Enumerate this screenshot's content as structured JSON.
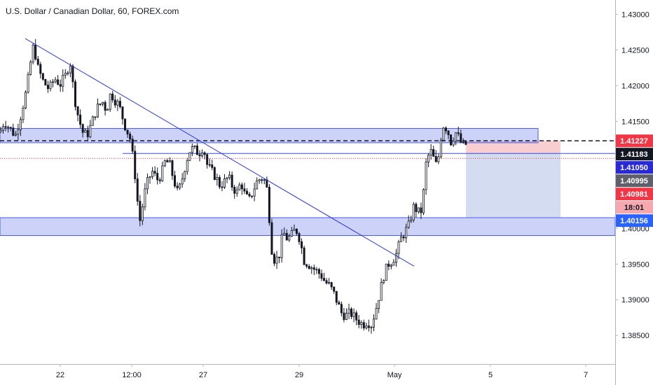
{
  "chart_data": {
    "type": "candlestick",
    "title": "U.S. Dollar / Canadian Dollar, 60, FOREX.com",
    "ylim": [
      1.381,
      1.432
    ],
    "y_axis_side": "right",
    "grid": false,
    "y_ticks": [
      {
        "value": 1.43,
        "label": "1.43000"
      },
      {
        "value": 1.425,
        "label": "1.42500"
      },
      {
        "value": 1.42,
        "label": "1.42000"
      },
      {
        "value": 1.415,
        "label": "1.41500"
      },
      {
        "value": 1.41,
        "label": "1.41000"
      },
      {
        "value": 1.405,
        "label": "1.40500"
      },
      {
        "value": 1.4,
        "label": "1.40000"
      },
      {
        "value": 1.395,
        "label": "1.39500"
      },
      {
        "value": 1.39,
        "label": "1.39000"
      },
      {
        "value": 1.385,
        "label": "1.38500"
      }
    ],
    "x_ticks": [
      {
        "t": 86,
        "label": "22"
      },
      {
        "t": 188,
        "label": "12:00"
      },
      {
        "t": 290,
        "label": "27"
      },
      {
        "t": 427,
        "label": "29"
      },
      {
        "t": 563,
        "label": "May"
      },
      {
        "t": 700,
        "label": "5"
      },
      {
        "t": 836,
        "label": "7"
      }
    ],
    "x_range": [
      0,
      878
    ],
    "price_path": [
      [
        0,
        1.4135
      ],
      [
        6,
        1.415
      ],
      [
        14,
        1.414
      ],
      [
        22,
        1.413
      ],
      [
        30,
        1.416
      ],
      [
        38,
        1.4195
      ],
      [
        44,
        1.4235
      ],
      [
        48,
        1.4258
      ],
      [
        54,
        1.4225
      ],
      [
        62,
        1.4205
      ],
      [
        70,
        1.4195
      ],
      [
        78,
        1.421
      ],
      [
        86,
        1.4202
      ],
      [
        94,
        1.4215
      ],
      [
        100,
        1.4235
      ],
      [
        106,
        1.4185
      ],
      [
        112,
        1.4155
      ],
      [
        118,
        1.4135
      ],
      [
        124,
        1.413
      ],
      [
        130,
        1.4145
      ],
      [
        138,
        1.4168
      ],
      [
        146,
        1.4178
      ],
      [
        152,
        1.4165
      ],
      [
        158,
        1.419
      ],
      [
        164,
        1.418
      ],
      [
        170,
        1.4172
      ],
      [
        178,
        1.4145
      ],
      [
        186,
        1.4125
      ],
      [
        192,
        1.4082
      ],
      [
        196,
        1.404
      ],
      [
        200,
        1.401
      ],
      [
        206,
        1.4048
      ],
      [
        212,
        1.407
      ],
      [
        218,
        1.408
      ],
      [
        224,
        1.4068
      ],
      [
        230,
        1.4075
      ],
      [
        236,
        1.4095
      ],
      [
        242,
        1.409
      ],
      [
        248,
        1.4068
      ],
      [
        254,
        1.4048
      ],
      [
        260,
        1.407
      ],
      [
        266,
        1.4095
      ],
      [
        272,
        1.4112
      ],
      [
        278,
        1.411
      ],
      [
        284,
        1.4105
      ],
      [
        290,
        1.4115
      ],
      [
        296,
        1.4088
      ],
      [
        302,
        1.408
      ],
      [
        308,
        1.4072
      ],
      [
        314,
        1.406
      ],
      [
        320,
        1.4065
      ],
      [
        326,
        1.4072
      ],
      [
        332,
        1.4058
      ],
      [
        338,
        1.405
      ],
      [
        344,
        1.4065
      ],
      [
        350,
        1.4045
      ],
      [
        356,
        1.404
      ],
      [
        362,
        1.4055
      ],
      [
        368,
        1.4068
      ],
      [
        374,
        1.407
      ],
      [
        380,
        1.4065
      ],
      [
        384,
        1.402
      ],
      [
        388,
        1.397
      ],
      [
        392,
        1.3955
      ],
      [
        398,
        1.396
      ],
      [
        404,
        1.3995
      ],
      [
        410,
        1.3985
      ],
      [
        416,
        1.399
      ],
      [
        422,
        1.4
      ],
      [
        428,
        1.3985
      ],
      [
        434,
        1.3955
      ],
      [
        440,
        1.395
      ],
      [
        446,
        1.3945
      ],
      [
        452,
        1.394
      ],
      [
        458,
        1.3935
      ],
      [
        464,
        1.3925
      ],
      [
        470,
        1.392
      ],
      [
        476,
        1.391
      ],
      [
        482,
        1.3895
      ],
      [
        488,
        1.388
      ],
      [
        494,
        1.3878
      ],
      [
        500,
        1.3882
      ],
      [
        506,
        1.3875
      ],
      [
        512,
        1.387
      ],
      [
        518,
        1.3865
      ],
      [
        524,
        1.387
      ],
      [
        530,
        1.3865
      ],
      [
        536,
        1.3885
      ],
      [
        542,
        1.391
      ],
      [
        548,
        1.3935
      ],
      [
        554,
        1.395
      ],
      [
        560,
        1.3955
      ],
      [
        566,
        1.3965
      ],
      [
        572,
        1.3985
      ],
      [
        578,
        1.3995
      ],
      [
        584,
        1.4005
      ],
      [
        590,
        1.403
      ],
      [
        596,
        1.4025
      ],
      [
        600,
        1.4018
      ],
      [
        604,
        1.4045
      ],
      [
        608,
        1.409
      ],
      [
        614,
        1.411
      ],
      [
        620,
        1.4095
      ],
      [
        624,
        1.4085
      ],
      [
        628,
        1.412
      ],
      [
        632,
        1.4145
      ],
      [
        638,
        1.414
      ],
      [
        644,
        1.412
      ],
      [
        650,
        1.4135
      ],
      [
        656,
        1.4125
      ],
      [
        660,
        1.4115
      ],
      [
        665,
        1.4118
      ]
    ],
    "annotations": {
      "trendline": {
        "from": [
          36,
          1.4266
        ],
        "to": [
          591,
          1.3947
        ],
        "color": "#2f3bd6"
      },
      "zones": [
        {
          "name": "resistance-zone",
          "t_start": 0,
          "t_end": 768,
          "y_low": 1.412,
          "y_high": 1.414,
          "color": "#8f9bf0"
        },
        {
          "name": "support-zone",
          "t_start": 0,
          "t_end": 878,
          "y_low": 1.399,
          "y_high": 1.4015,
          "color": "#8f9bf0"
        }
      ],
      "dashed_level": {
        "value": 1.41227,
        "t_start": 0,
        "t_end": 878
      },
      "blue_level": {
        "value": 1.4105,
        "t_start": 175,
        "t_end": 878
      },
      "red_level": {
        "value": 1.40981,
        "t_start": 0,
        "t_end": 878
      },
      "short_position": {
        "t_start": 665,
        "t_end": 800,
        "entry": 1.4105,
        "stop": 1.41227,
        "target": 1.40156,
        "stop_color": "#f7c5c8",
        "target_color": "#c9d3ee"
      }
    },
    "price_labels": [
      {
        "name": "label-dashed-level",
        "text": "1.41227",
        "value": 1.41227,
        "bg": "#f23645",
        "color": "#ffffff"
      },
      {
        "name": "label-last-price",
        "text": "1.41183",
        "value": 1.41183,
        "bg": "#131722",
        "color": "#ffffff"
      },
      {
        "name": "label-blue-level",
        "text": "1.41050",
        "value": 1.4105,
        "bg": "#2929d6",
        "color": "#ffffff"
      },
      {
        "name": "label-level-2",
        "text": "1.40995",
        "value": 1.40995,
        "bg": "#5d606b",
        "color": "#ffffff"
      },
      {
        "name": "label-red-level",
        "text": "1.40981",
        "value": 1.40981,
        "bg": "#f23645",
        "color": "#ffffff"
      },
      {
        "name": "label-countdown",
        "text": "18:01",
        "value": 1.4086,
        "bg": "#f7a8ae",
        "color": "#131722"
      },
      {
        "name": "label-target-level",
        "text": "1.40156",
        "value": 1.40156,
        "bg": "#2962ff",
        "color": "#ffffff"
      }
    ],
    "colors": {
      "candle": "#131722",
      "axis_text": "#131722",
      "axis_line": "#b2b5be"
    }
  }
}
